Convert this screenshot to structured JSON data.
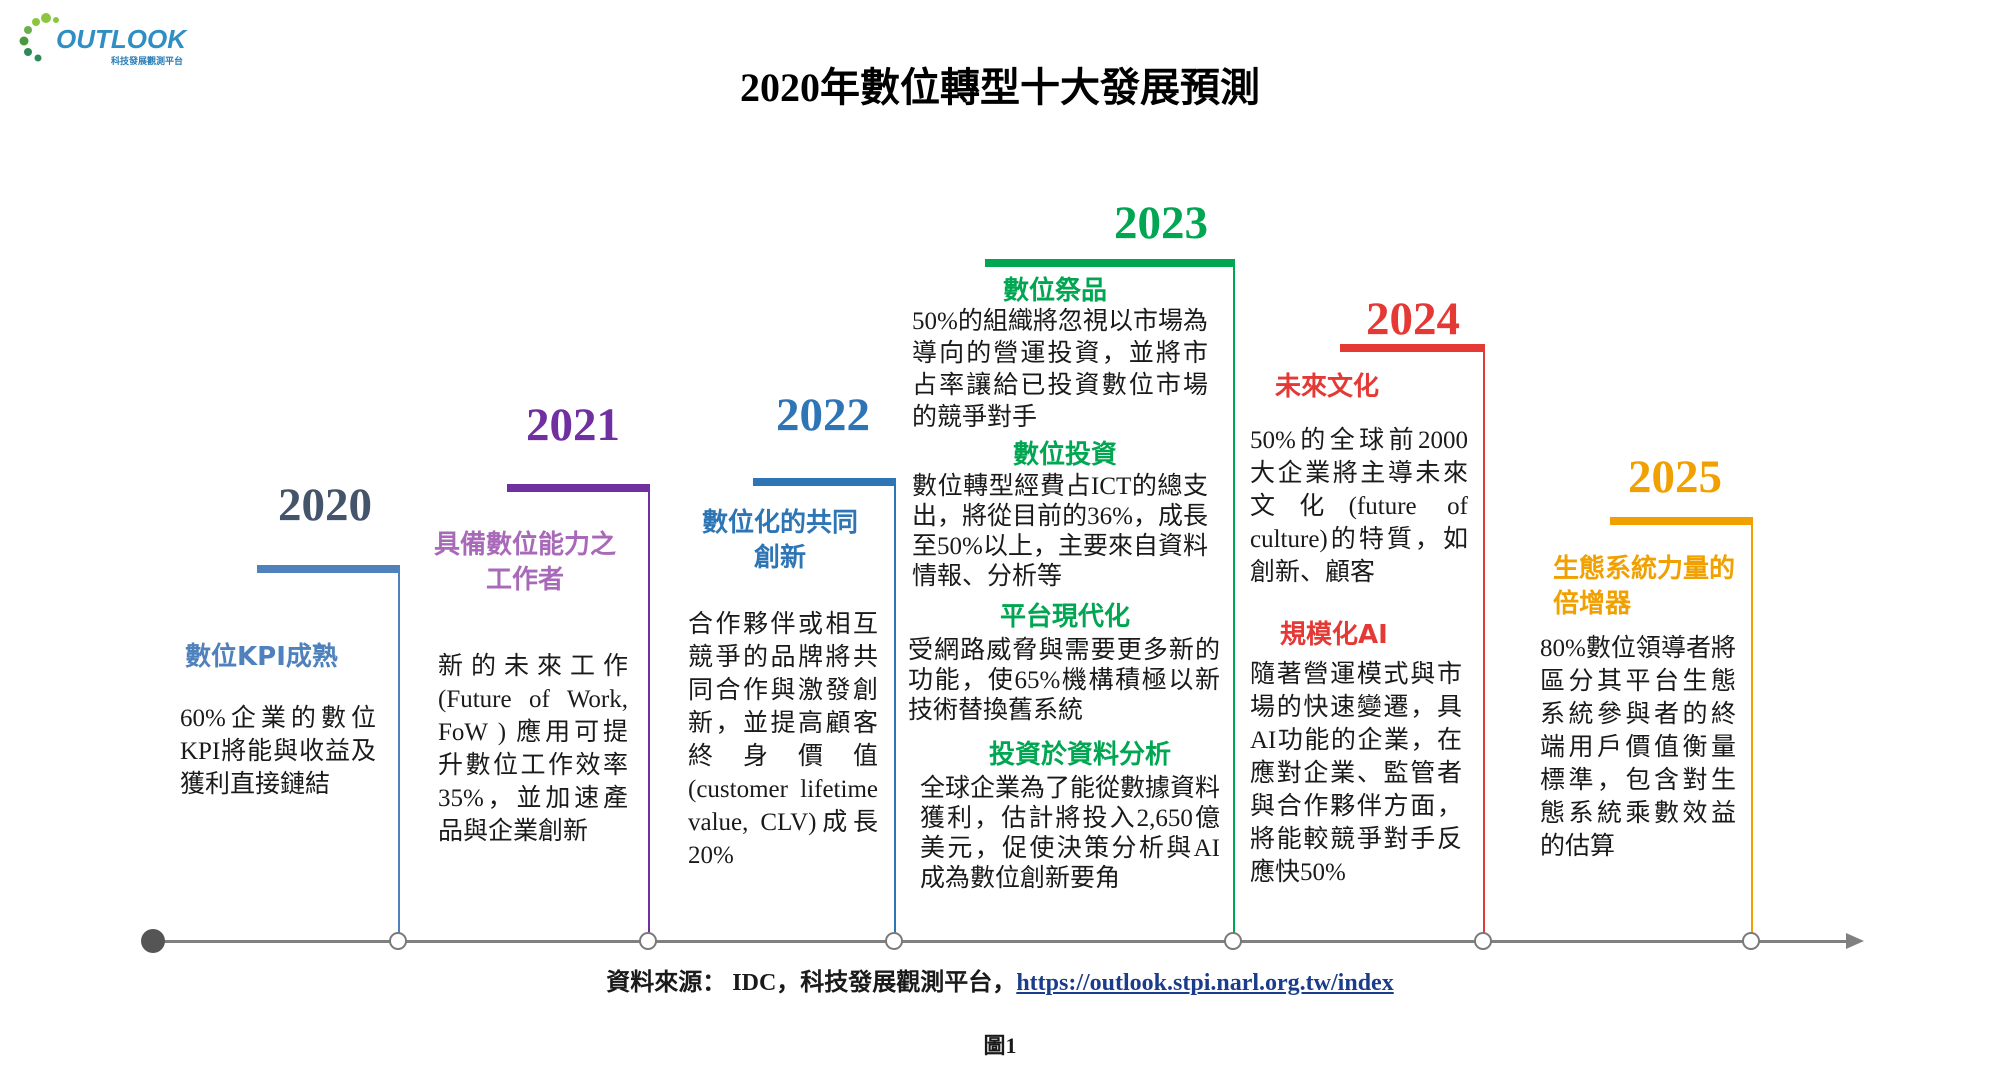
{
  "title": "2020年數位轉型十大發展預測",
  "logo": {
    "name": "OUTLOOK",
    "subtitle": "科技發展觀測平台"
  },
  "milestones": [
    {
      "year": "2020",
      "color": "#4f81bd",
      "heading_color": "#4f81bd",
      "year_color": "#44546a",
      "sections": [
        {
          "heading": "數位KPI成熟",
          "body": "60%企業的數位KPI將能與收益及獲利直接鏈結"
        }
      ]
    },
    {
      "year": "2021",
      "color": "#7030a0",
      "heading_color": "#a86ab8",
      "year_color": "#7030a0",
      "sections": [
        {
          "heading": "具備數位能力之工作者",
          "body": "新的未來工作(Future of Work, FoW ) 應用可提升數位工作效率35%，並加速產品與企業創新"
        }
      ]
    },
    {
      "year": "2022",
      "color": "#2e75b6",
      "heading_color": "#2e75b6",
      "year_color": "#2e75b6",
      "sections": [
        {
          "heading": "數位化的共同創新",
          "body": "合作夥伴或相互競爭的品牌將共同合作與激發創新，並提高顧客終身價值 (customer lifetime value, CLV)成長20%"
        }
      ]
    },
    {
      "year": "2023",
      "color": "#00a651",
      "heading_color": "#00a651",
      "year_color": "#00a651",
      "sections": [
        {
          "heading": "數位祭品",
          "body": "50%的組織將忽視以市場為導向的營運投資，並將市占率讓給已投資數位市場的競爭對手"
        },
        {
          "heading": "數位投資",
          "body": "數位轉型經費占ICT的總支出，將從目前的36%，成長至50%以上，主要來自資料情報、分析等"
        },
        {
          "heading": "平台現代化",
          "body": "受網路威脅與需要更多新的功能，使65%機構積極以新技術替換舊系統"
        },
        {
          "heading": "投資於資料分析",
          "body": "全球企業為了能從數據資料獲利，估計將投入2,650億美元，促使決策分析與AI成為數位創新要角"
        }
      ]
    },
    {
      "year": "2024",
      "color": "#e53935",
      "heading_color": "#e53935",
      "year_color": "#e53935",
      "sections": [
        {
          "heading": "未來文化",
          "body": "50%的全球前2000大企業將主導未來文化(future of culture)的特質，如創新、顧客"
        },
        {
          "heading": "規模化AI",
          "body": "隨著營運模式與市場的快速變遷，具AI功能的企業，在應對企業、監管者與合作夥伴方面，將能較競爭對手反應快50%"
        }
      ]
    },
    {
      "year": "2025",
      "color": "#f0a000",
      "heading_color": "#f0a000",
      "year_color": "#f0a000",
      "sections": [
        {
          "heading": "生態系統力量的倍增器",
          "body": "80%數位領導者將區分其平台生態系統參與者的終端用戶價值衡量標準，包含對生態系統乘數效益的估算"
        }
      ]
    }
  ],
  "source": {
    "label": "資料來源： IDC，科技發展觀測平台，",
    "url": "https://outlook.stpi.narl.org.tw/index"
  },
  "figure_label": "圖1"
}
